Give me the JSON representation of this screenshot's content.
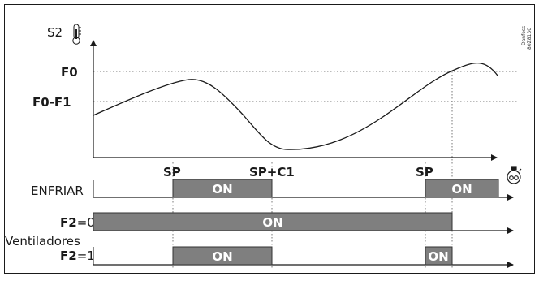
{
  "sensor_label": "S2",
  "axis_labels": {
    "f0": "F0",
    "f0_f1": "F0-F1"
  },
  "event_labels": {
    "sp_first": "SP",
    "sp_c1": "SP+C1",
    "sp_second": "SP"
  },
  "rows": {
    "cooling": {
      "label": "ENFRIAR"
    },
    "f2_zero": {
      "label_bold": "F2",
      "label_rest": "=0"
    },
    "fans_heading": "Ventiladores",
    "f2_one": {
      "label_bold": "F2",
      "label_rest": "=1"
    }
  },
  "on_label": "ON",
  "vendor_mark": {
    "line1": "Danfoss",
    "line2": "80Z8130"
  },
  "icons": {
    "sensor": "thermometer-icon",
    "timer": "stopwatch-icon"
  },
  "colors": {
    "on_bar_fill": "#7f7f7f",
    "on_bar_stroke": "#333333",
    "line": "#1a1a1a",
    "guide": "#777777"
  }
}
